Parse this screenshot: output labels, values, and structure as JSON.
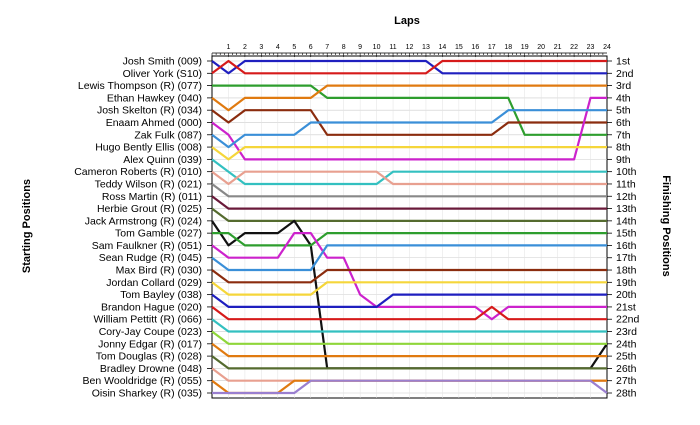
{
  "chart_data": {
    "type": "line",
    "title": "",
    "xlabel": "Laps",
    "ylabel_left": "Starting Positions",
    "ylabel_right": "Finishing Positions",
    "x": [
      0,
      1,
      2,
      3,
      4,
      5,
      6,
      7,
      8,
      9,
      10,
      11,
      12,
      13,
      14,
      15,
      16,
      17,
      18,
      19,
      20,
      21,
      22,
      23,
      24
    ],
    "x_tick_labels": [
      "1",
      "2",
      "3",
      "4",
      "5",
      "6",
      "7",
      "8",
      "9",
      "10",
      "11",
      "12",
      "13",
      "14",
      "15",
      "16",
      "17",
      "18",
      "19",
      "20",
      "21",
      "22",
      "23",
      "24"
    ],
    "y_range": [
      1,
      28
    ],
    "y_reversed": true,
    "grid": true,
    "drivers": [
      "Josh Smith (009)",
      "Oliver York (S10)",
      "Lewis Thompson (R) (077)",
      "Ethan Hawkey (040)",
      "Josh Skelton (R) (034)",
      "Enaam Ahmed (000)",
      "Zak Fulk (087)",
      "Hugo Bently Ellis (008)",
      "Alex Quinn (039)",
      "Cameron Roberts (R) (010)",
      "Teddy Wilson (R) (021)",
      "Ross Martin (R) (011)",
      "Herbie Grout (R) (025)",
      "Jack Armstrong (R) (024)",
      "Tom Gamble (027)",
      "Sam Faulkner (R) (051)",
      "Sean Rudge (R) (045)",
      "Max Bird (R) (030)",
      "Jordan Collard (029)",
      "Tom Bayley (038)",
      "Brandon Hague (020)",
      "William Pettitt (R) (066)",
      "Cory-Jay Coupe (023)",
      "Jonny Edgar (R) (017)",
      "Tom Douglas (R) (028)",
      "Bradley Drowne (048)",
      "Ben Wooldridge (R) (055)",
      "Oisin Sharkey (R) (035)"
    ],
    "finishing_labels": [
      "1st",
      "2nd",
      "3rd",
      "4th",
      "5th",
      "6th",
      "7th",
      "8th",
      "9th",
      "10th",
      "11th",
      "12th",
      "13th",
      "14th",
      "15th",
      "16th",
      "17th",
      "18th",
      "19th",
      "20th",
      "21st",
      "22nd",
      "23rd",
      "24th",
      "25th",
      "26th",
      "27th",
      "28th"
    ],
    "series": [
      {
        "color": "#1f1fbf",
        "values": [
          1,
          2,
          1,
          1,
          1,
          1,
          1,
          1,
          1,
          1,
          1,
          1,
          1,
          1,
          2,
          2,
          2,
          2,
          2,
          2,
          2,
          2,
          2,
          2,
          2
        ]
      },
      {
        "color": "#d61a1a",
        "values": [
          2,
          1,
          2,
          2,
          2,
          2,
          2,
          2,
          2,
          2,
          2,
          2,
          2,
          2,
          1,
          1,
          1,
          1,
          1,
          1,
          1,
          1,
          1,
          1,
          1
        ]
      },
      {
        "color": "#2e9e2e",
        "values": [
          3,
          3,
          3,
          3,
          3,
          3,
          3,
          4,
          4,
          4,
          4,
          4,
          4,
          4,
          4,
          4,
          4,
          4,
          4,
          7,
          7,
          7,
          7,
          7,
          7
        ]
      },
      {
        "color": "#e07a10",
        "values": [
          4,
          5,
          4,
          4,
          4,
          4,
          4,
          3,
          3,
          3,
          3,
          3,
          3,
          3,
          3,
          3,
          3,
          3,
          3,
          3,
          3,
          3,
          3,
          3,
          3
        ]
      },
      {
        "color": "#8b2c0e",
        "values": [
          5,
          6,
          5,
          5,
          5,
          5,
          5,
          7,
          7,
          7,
          7,
          7,
          7,
          7,
          7,
          7,
          7,
          7,
          6,
          6,
          6,
          6,
          6,
          6,
          6
        ]
      },
      {
        "color": "#cc22cc",
        "values": [
          6,
          7,
          9,
          9,
          9,
          9,
          9,
          9,
          9,
          9,
          9,
          9,
          9,
          9,
          9,
          9,
          9,
          9,
          9,
          9,
          9,
          9,
          9,
          4,
          4
        ]
      },
      {
        "color": "#3a8fd8",
        "values": [
          7,
          8,
          7,
          7,
          7,
          7,
          6,
          6,
          6,
          6,
          6,
          6,
          6,
          6,
          6,
          6,
          6,
          6,
          5,
          5,
          5,
          5,
          5,
          5,
          5
        ]
      },
      {
        "color": "#f5d63a",
        "values": [
          8,
          9,
          8,
          8,
          8,
          8,
          8,
          8,
          8,
          8,
          8,
          8,
          8,
          8,
          8,
          8,
          8,
          8,
          8,
          8,
          8,
          8,
          8,
          8,
          8
        ]
      },
      {
        "color": "#33c0c0",
        "values": [
          9,
          10,
          11,
          11,
          11,
          11,
          11,
          11,
          11,
          11,
          11,
          10,
          10,
          10,
          10,
          10,
          10,
          10,
          10,
          10,
          10,
          10,
          10,
          10,
          10
        ]
      },
      {
        "color": "#e8a090",
        "values": [
          10,
          11,
          10,
          10,
          10,
          10,
          10,
          10,
          10,
          10,
          10,
          11,
          11,
          11,
          11,
          11,
          11,
          11,
          11,
          11,
          11,
          11,
          11,
          11,
          11
        ]
      },
      {
        "color": "#888888",
        "values": [
          11,
          12,
          12,
          12,
          12,
          12,
          12,
          12,
          12,
          12,
          12,
          12,
          12,
          12,
          12,
          12,
          12,
          12,
          12,
          12,
          12,
          12,
          12,
          12,
          12
        ]
      },
      {
        "color": "#6a1a3a",
        "values": [
          12,
          13,
          13,
          13,
          13,
          13,
          13,
          13,
          13,
          13,
          13,
          13,
          13,
          13,
          13,
          13,
          13,
          13,
          13,
          13,
          13,
          13,
          13,
          13,
          13
        ]
      },
      {
        "color": "#556b2f",
        "values": [
          13,
          14,
          14,
          14,
          14,
          14,
          14,
          14,
          14,
          14,
          14,
          14,
          14,
          14,
          14,
          14,
          14,
          14,
          14,
          14,
          14,
          14,
          14,
          14,
          14
        ]
      },
      {
        "color": "#111111",
        "values": [
          14,
          16,
          15,
          15,
          15,
          14,
          16,
          26,
          26,
          26,
          26,
          26,
          26,
          26,
          26,
          26,
          26,
          26,
          26,
          26,
          26,
          26,
          26,
          26,
          24
        ]
      },
      {
        "color": "#2e9e2e",
        "values": [
          15,
          15,
          16,
          16,
          16,
          16,
          16,
          15,
          15,
          15,
          15,
          15,
          15,
          15,
          15,
          15,
          15,
          15,
          15,
          15,
          15,
          15,
          15,
          15,
          15
        ]
      },
      {
        "color": "#cc22cc",
        "values": [
          16,
          17,
          17,
          17,
          17,
          15,
          15,
          17,
          17,
          20,
          21,
          21,
          21,
          21,
          21,
          21,
          21,
          22,
          21,
          21,
          21,
          21,
          21,
          21,
          21
        ]
      },
      {
        "color": "#3a8fd8",
        "values": [
          17,
          18,
          18,
          18,
          18,
          18,
          18,
          16,
          16,
          16,
          16,
          16,
          16,
          16,
          16,
          16,
          16,
          16,
          16,
          16,
          16,
          16,
          16,
          16,
          16
        ]
      },
      {
        "color": "#8b2c0e",
        "values": [
          18,
          19,
          19,
          19,
          19,
          19,
          19,
          18,
          18,
          18,
          18,
          18,
          18,
          18,
          18,
          18,
          18,
          18,
          18,
          18,
          18,
          18,
          18,
          18,
          18
        ]
      },
      {
        "color": "#f5d63a",
        "values": [
          19,
          20,
          20,
          20,
          20,
          20,
          20,
          19,
          19,
          19,
          19,
          19,
          19,
          19,
          19,
          19,
          19,
          19,
          19,
          19,
          19,
          19,
          19,
          19,
          19
        ]
      },
      {
        "color": "#1f1fbf",
        "values": [
          20,
          21,
          21,
          21,
          21,
          21,
          21,
          21,
          21,
          21,
          21,
          20,
          20,
          20,
          20,
          20,
          20,
          20,
          20,
          20,
          20,
          20,
          20,
          20,
          20
        ]
      },
      {
        "color": "#d61a1a",
        "values": [
          21,
          22,
          22,
          22,
          22,
          22,
          22,
          22,
          22,
          22,
          22,
          22,
          22,
          22,
          22,
          22,
          22,
          21,
          22,
          22,
          22,
          22,
          22,
          22,
          22
        ]
      },
      {
        "color": "#33c0c0",
        "values": [
          22,
          23,
          23,
          23,
          23,
          23,
          23,
          23,
          23,
          23,
          23,
          23,
          23,
          23,
          23,
          23,
          23,
          23,
          23,
          23,
          23,
          23,
          23,
          23,
          23
        ]
      },
      {
        "color": "#8fd63a",
        "values": [
          23,
          24,
          24,
          24,
          24,
          24,
          24,
          24,
          24,
          24,
          24,
          24,
          24,
          24,
          24,
          24,
          24,
          24,
          24,
          24,
          24,
          24,
          24,
          24,
          24
        ]
      },
      {
        "color": "#e07a10",
        "values": [
          24,
          25,
          25,
          25,
          25,
          25,
          25,
          25,
          25,
          25,
          25,
          25,
          25,
          25,
          25,
          25,
          25,
          25,
          25,
          25,
          25,
          25,
          25,
          25,
          25
        ]
      },
      {
        "color": "#556b2f",
        "values": [
          25,
          26,
          26,
          26,
          26,
          26,
          26,
          26,
          26,
          26,
          26,
          26,
          26,
          26,
          26,
          26,
          26,
          26,
          26,
          26,
          26,
          26,
          26,
          26,
          26
        ]
      },
      {
        "color": "#e8a090",
        "values": [
          26,
          27,
          27,
          27,
          27,
          27,
          27,
          27,
          27,
          27,
          27,
          27,
          27,
          27,
          27,
          27,
          27,
          27,
          27,
          27,
          27,
          27,
          27,
          27,
          27
        ]
      },
      {
        "color": "#e07a10",
        "values": [
          27,
          28,
          28,
          28,
          28,
          27,
          27,
          27,
          27,
          27,
          27,
          27,
          27,
          27,
          27,
          27,
          27,
          27,
          27,
          27,
          27,
          27,
          27,
          27,
          27
        ]
      },
      {
        "color": "#9a7fd0",
        "values": [
          28,
          28,
          28,
          28,
          28,
          28,
          27,
          27,
          27,
          27,
          27,
          27,
          27,
          27,
          27,
          27,
          27,
          27,
          27,
          27,
          27,
          27,
          27,
          27,
          28
        ]
      }
    ]
  }
}
